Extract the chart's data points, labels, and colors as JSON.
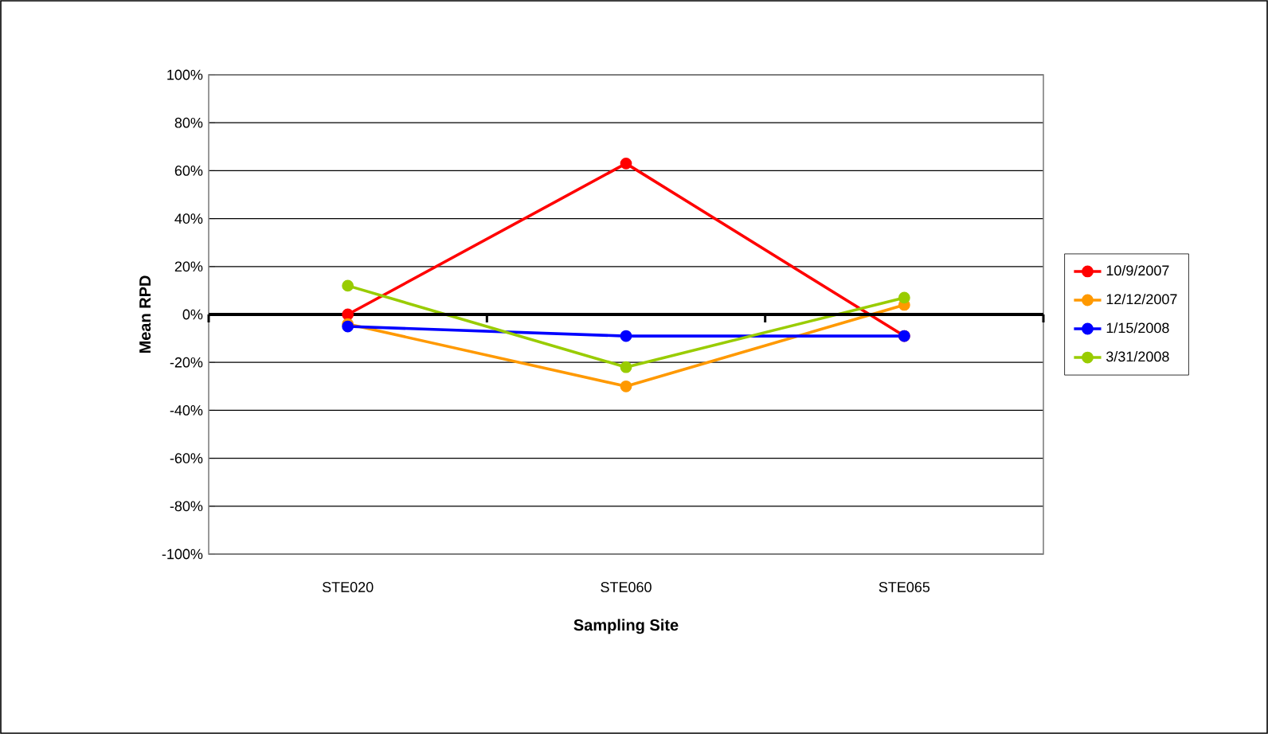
{
  "chart_data": {
    "type": "line",
    "xlabel": "Sampling Site",
    "ylabel": "Mean RPD",
    "categories": [
      "STE020",
      "STE060",
      "STE065"
    ],
    "series": [
      {
        "name": "10/9/2007",
        "color": "#ff0000",
        "values": [
          0,
          63,
          -9
        ]
      },
      {
        "name": "12/12/2007",
        "color": "#ff9900",
        "values": [
          -4,
          -30,
          4
        ]
      },
      {
        "name": "1/15/2008",
        "color": "#0000ff",
        "values": [
          -5,
          -9,
          -9
        ]
      },
      {
        "name": "3/31/2008",
        "color": "#99cc00",
        "values": [
          12,
          -22,
          7
        ]
      }
    ],
    "ylim": [
      -100,
      100
    ],
    "yticks": [
      {
        "value": -100,
        "label": "-100%"
      },
      {
        "value": -80,
        "label": "-80%"
      },
      {
        "value": -60,
        "label": "-60%"
      },
      {
        "value": -40,
        "label": "-40%"
      },
      {
        "value": -20,
        "label": "-20%"
      },
      {
        "value": 0,
        "label": "0%"
      },
      {
        "value": 20,
        "label": "20%"
      },
      {
        "value": 40,
        "label": "40%"
      },
      {
        "value": 60,
        "label": "60%"
      },
      {
        "value": 80,
        "label": "80%"
      },
      {
        "value": 100,
        "label": "100%"
      }
    ],
    "grid": "y",
    "legend": "right",
    "marker": "circle",
    "line_style": "solid"
  }
}
